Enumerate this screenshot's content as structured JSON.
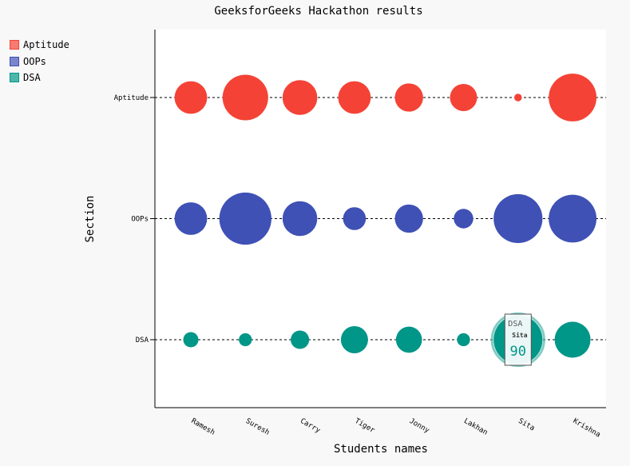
{
  "chart_data": {
    "type": "scatter",
    "title": "GeeksforGeeks Hackathon results",
    "xlabel": "Students names",
    "ylabel": "Section",
    "categories": [
      "Ramesh",
      "Suresh",
      "Carry",
      "Tiger",
      "Jonny",
      "Lakhan",
      "Sita",
      "Krishna"
    ],
    "sections": [
      "Aptitude",
      "OOPs",
      "DSA"
    ],
    "series": [
      {
        "name": "Aptitude",
        "color": "#f44336",
        "legend_color": "#f77b72",
        "values": [
          60,
          84,
          64,
          60,
          52,
          50,
          14,
          88
        ]
      },
      {
        "name": "OOPs",
        "color": "#3f51b5",
        "legend_color": "#7986cb",
        "values": [
          60,
          96,
          64,
          42,
          52,
          36,
          90,
          88
        ]
      },
      {
        "name": "DSA",
        "color": "#009688",
        "legend_color": "#4db6ac",
        "values": [
          28,
          24,
          34,
          50,
          48,
          24,
          90,
          66
        ]
      }
    ],
    "tooltip": {
      "series": "DSA",
      "label": "Sita",
      "value": "90"
    },
    "legend_position": "top-left",
    "grid": false
  }
}
